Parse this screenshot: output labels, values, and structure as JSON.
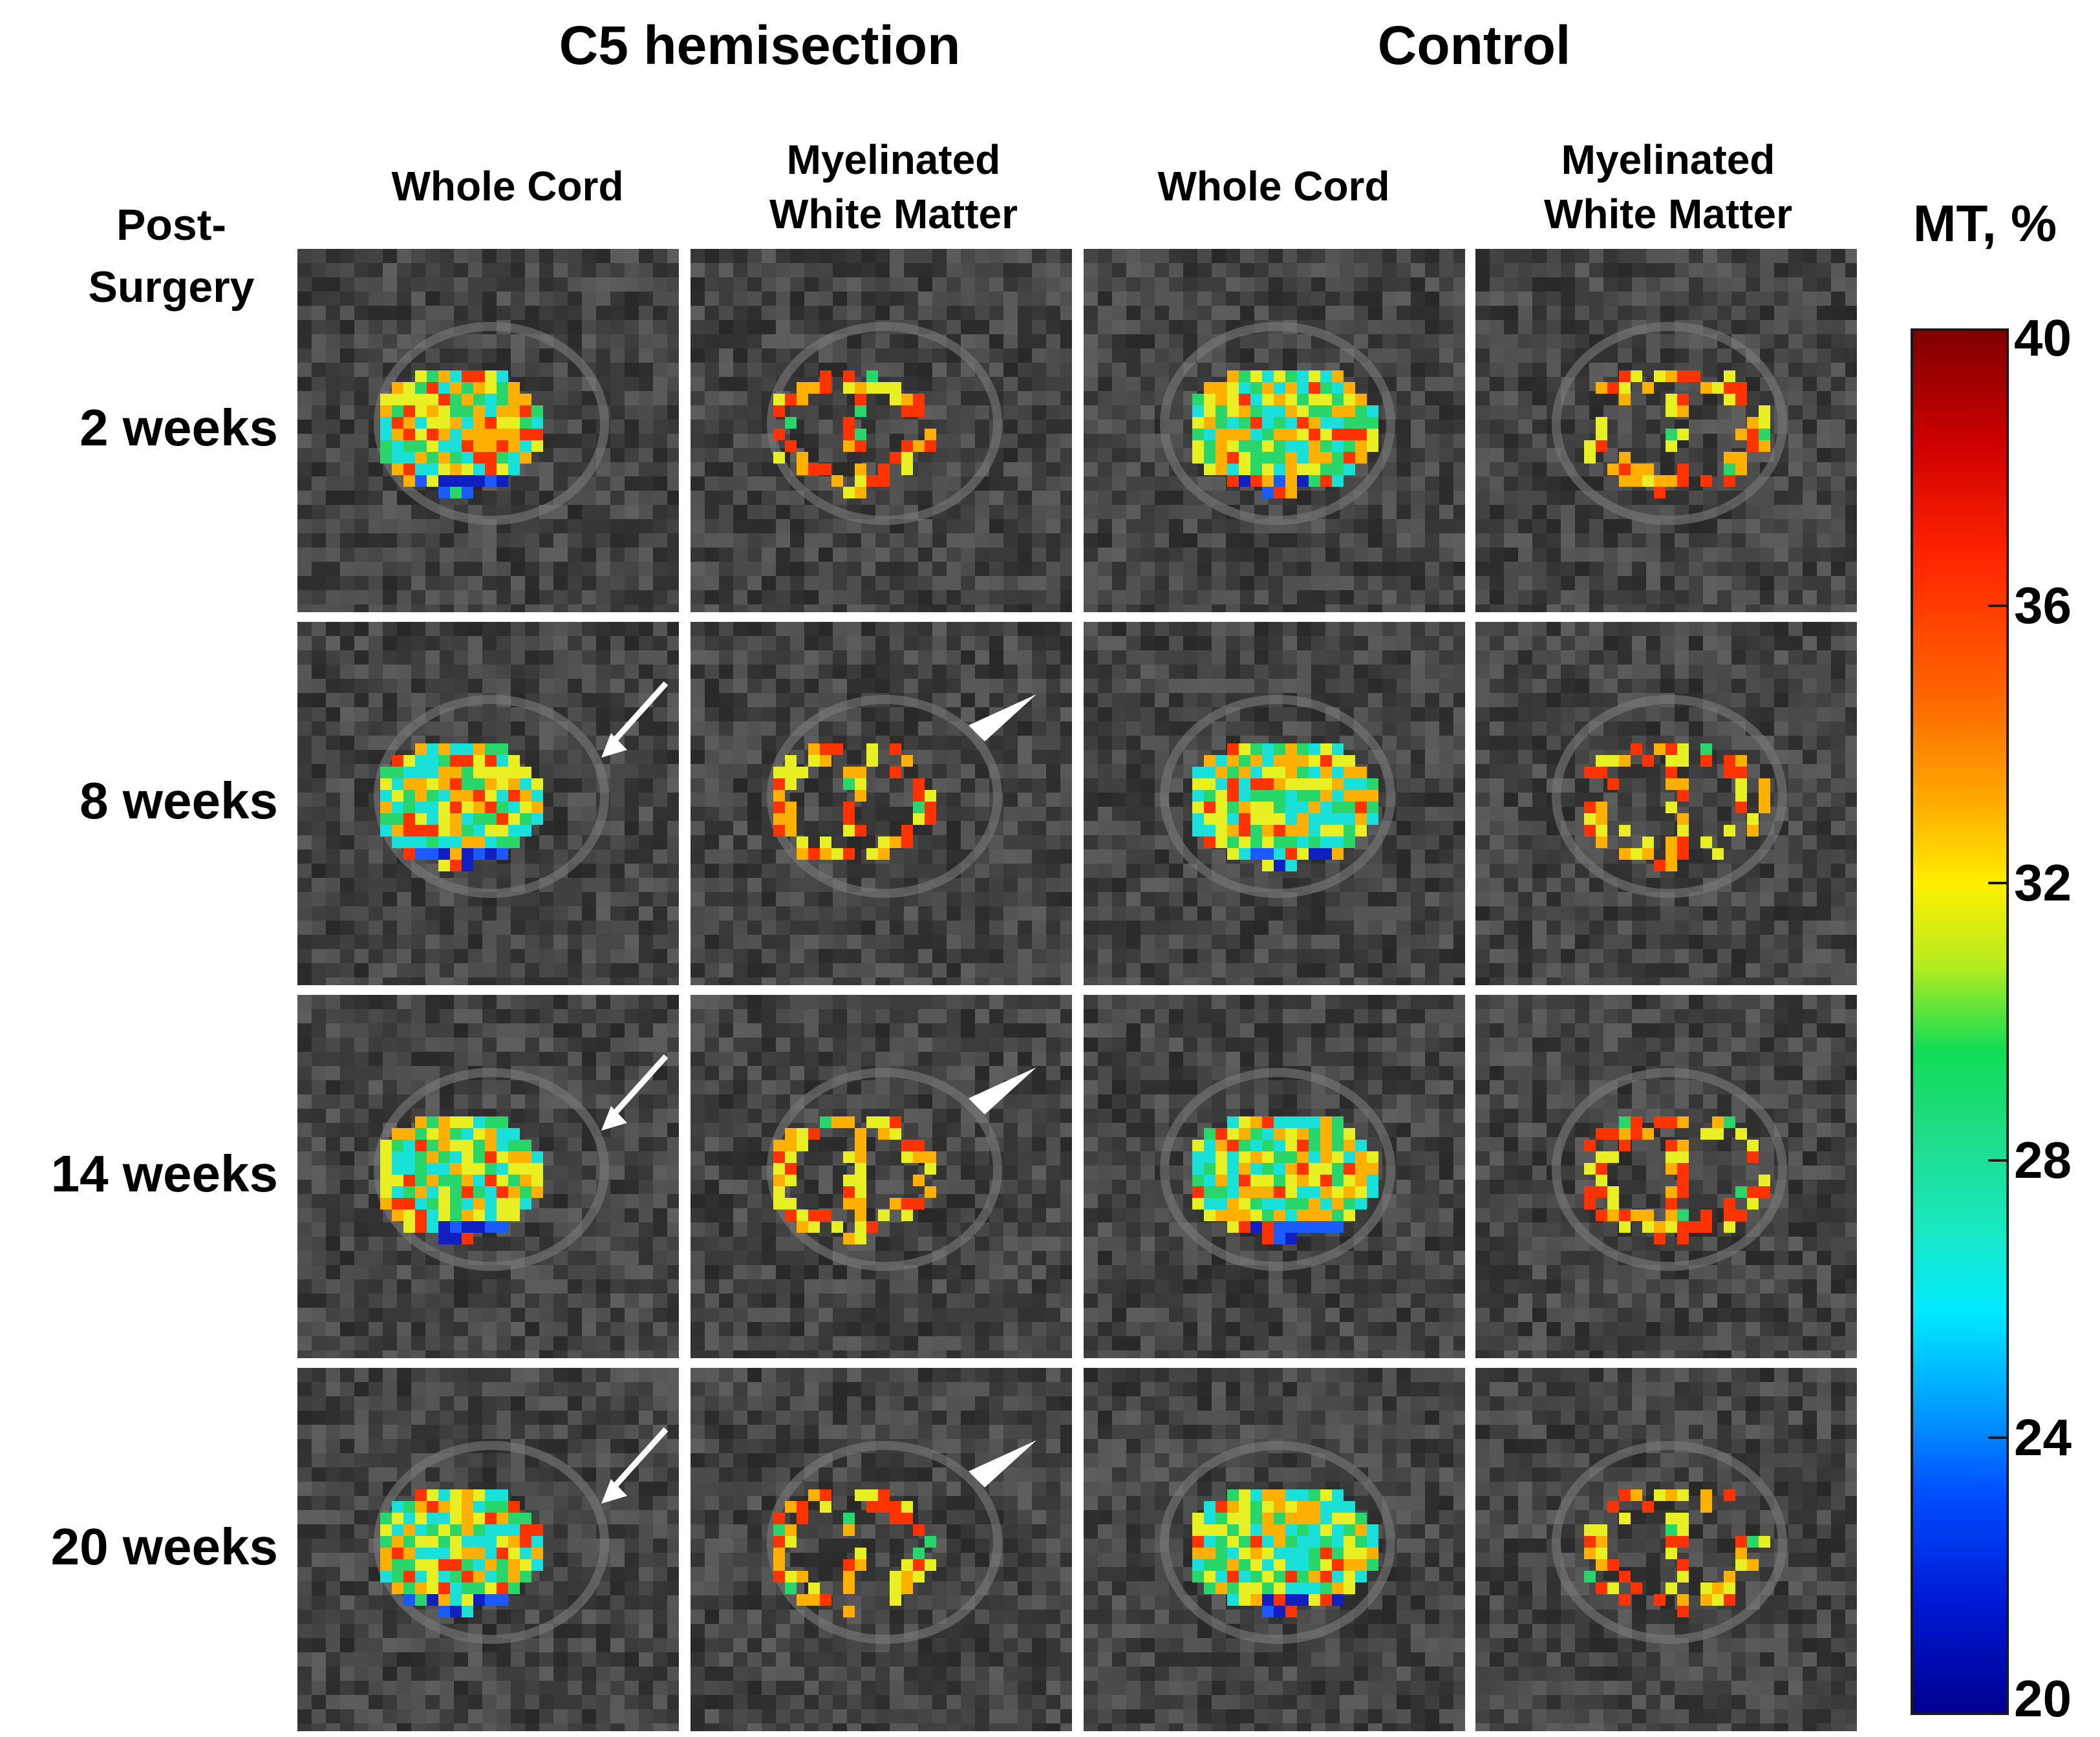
{
  "group_titles": [
    "C5 hemisection",
    "Control"
  ],
  "column_headers": [
    "Whole Cord",
    "Myelinated\nWhite Matter",
    "Whole Cord",
    "Myelinated\nWhite Matter"
  ],
  "row_header": "Post-\nSurgery",
  "rows": [
    {
      "label": "2 weeks"
    },
    {
      "label": "8 weeks"
    },
    {
      "label": "14 weeks"
    },
    {
      "label": "20 weeks"
    }
  ],
  "colorbar": {
    "title": "MT, %",
    "ticks": [
      "40",
      "36",
      "32",
      "28",
      "24",
      "20"
    ],
    "range": [
      20,
      40
    ]
  },
  "annotations": {
    "arrow": "white-arrow-icon",
    "arrowhead": "white-arrowhead-icon"
  },
  "colors": {
    "background": "#ffffff",
    "mri": "#3a3a3a",
    "hot": "#ff3300",
    "warm": "#ffb000",
    "yellow": "#e8ef22",
    "green": "#29d66a",
    "cyan": "#19e0d8",
    "blue": "#1a5aff",
    "deepblue": "#1020c0"
  }
}
